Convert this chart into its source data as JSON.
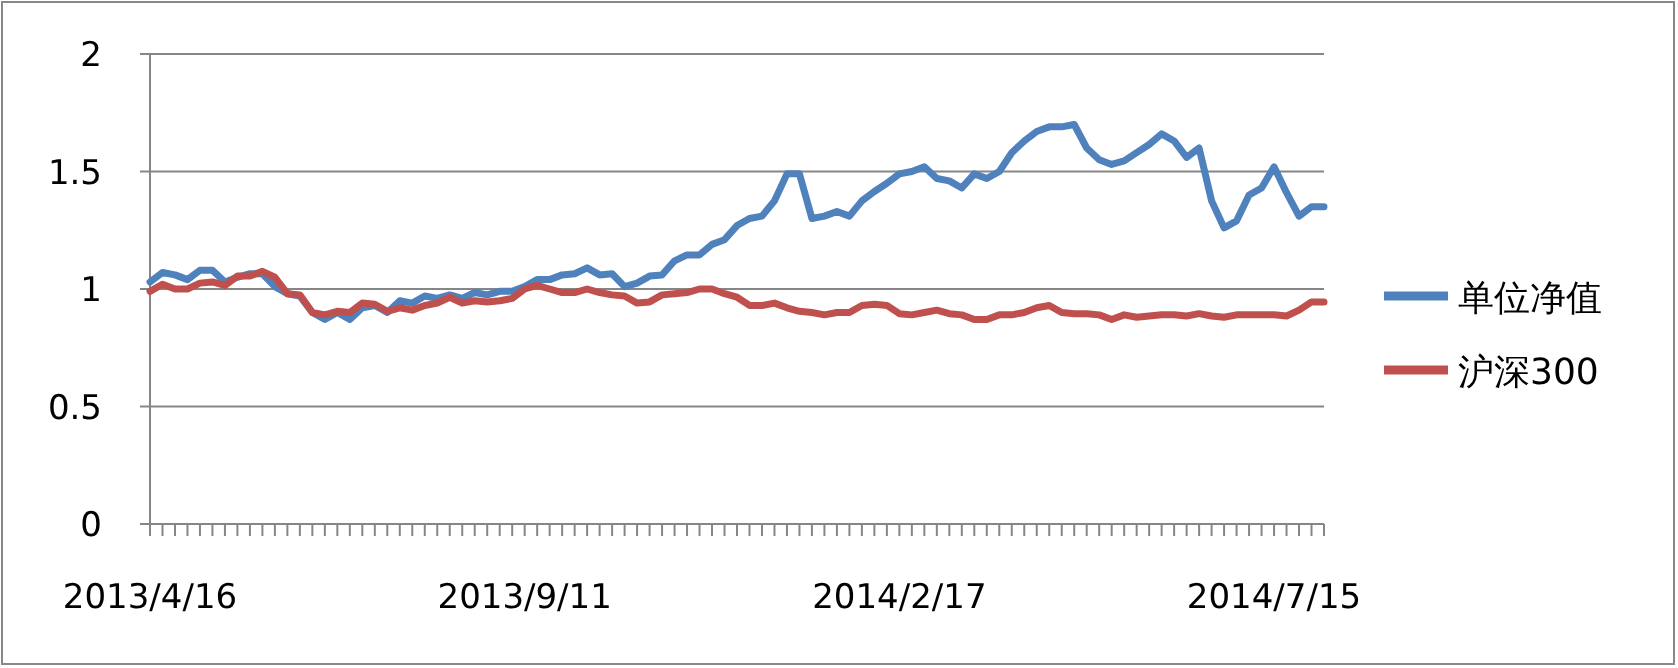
{
  "chart_data": {
    "type": "line",
    "categories": [
      "2013/4/16",
      null,
      null,
      null,
      null,
      null,
      null,
      null,
      null,
      null,
      null,
      null,
      null,
      null,
      null,
      null,
      null,
      null,
      null,
      null,
      null,
      null,
      null,
      null,
      null,
      null,
      null,
      null,
      null,
      null,
      "2013/9/11",
      null,
      null,
      null,
      null,
      null,
      null,
      null,
      null,
      null,
      null,
      null,
      null,
      null,
      null,
      null,
      null,
      null,
      null,
      null,
      null,
      null,
      null,
      null,
      null,
      null,
      null,
      null,
      null,
      null,
      "2014/2/17",
      null,
      null,
      null,
      null,
      null,
      null,
      null,
      null,
      null,
      null,
      null,
      null,
      null,
      null,
      null,
      null,
      null,
      null,
      null,
      null,
      null,
      null,
      null,
      null,
      null,
      null,
      null,
      null,
      null,
      "2014/7/15",
      null,
      null,
      null,
      null
    ],
    "series": [
      {
        "name": "单位净值",
        "color": "#4f81bd",
        "values": [
          1.03,
          1.07,
          1.06,
          1.04,
          1.08,
          1.08,
          1.03,
          1.05,
          1.065,
          1.065,
          1.01,
          0.98,
          0.97,
          0.9,
          0.87,
          0.9,
          0.87,
          0.92,
          0.93,
          0.9,
          0.95,
          0.94,
          0.97,
          0.96,
          0.975,
          0.96,
          0.985,
          0.975,
          0.99,
          0.99,
          1.01,
          1.04,
          1.04,
          1.06,
          1.065,
          1.09,
          1.06,
          1.065,
          1.01,
          1.025,
          1.055,
          1.06,
          1.12,
          1.145,
          1.145,
          1.19,
          1.21,
          1.27,
          1.3,
          1.31,
          1.375,
          1.49,
          1.49,
          1.3,
          1.31,
          1.33,
          1.31,
          1.375,
          1.415,
          1.45,
          1.49,
          1.5,
          1.52,
          1.47,
          1.46,
          1.43,
          1.49,
          1.47,
          1.5,
          1.58,
          1.63,
          1.67,
          1.69,
          1.69,
          1.7,
          1.6,
          1.55,
          1.53,
          1.545,
          1.58,
          1.615,
          1.66,
          1.63,
          1.56,
          1.6,
          1.375,
          1.26,
          1.29,
          1.4,
          1.43,
          1.52,
          1.41,
          1.31,
          1.35,
          1.35
        ]
      },
      {
        "name": "沪深300",
        "color": "#c0504d",
        "values": [
          0.99,
          1.02,
          1.0,
          1.0,
          1.025,
          1.03,
          1.015,
          1.055,
          1.055,
          1.075,
          1.05,
          0.98,
          0.975,
          0.9,
          0.89,
          0.905,
          0.9,
          0.94,
          0.935,
          0.905,
          0.92,
          0.91,
          0.93,
          0.94,
          0.965,
          0.94,
          0.95,
          0.945,
          0.95,
          0.96,
          1.0,
          1.015,
          1.0,
          0.985,
          0.985,
          1.0,
          0.985,
          0.975,
          0.97,
          0.94,
          0.945,
          0.975,
          0.98,
          0.985,
          1.0,
          1.0,
          0.98,
          0.965,
          0.93,
          0.93,
          0.94,
          0.92,
          0.905,
          0.9,
          0.89,
          0.9,
          0.9,
          0.93,
          0.935,
          0.93,
          0.895,
          0.89,
          0.9,
          0.91,
          0.895,
          0.89,
          0.87,
          0.87,
          0.89,
          0.89,
          0.9,
          0.92,
          0.93,
          0.9,
          0.895,
          0.895,
          0.89,
          0.87,
          0.89,
          0.88,
          0.885,
          0.89,
          0.89,
          0.885,
          0.895,
          0.885,
          0.88,
          0.89,
          0.89,
          0.89,
          0.89,
          0.885,
          0.91,
          0.945,
          0.945
        ]
      }
    ],
    "ylim": [
      0,
      2
    ],
    "yticks": [
      0,
      0.5,
      1,
      1.5,
      2
    ],
    "grid": "y",
    "legend": "right",
    "marker": "none",
    "line_style": "solid"
  }
}
